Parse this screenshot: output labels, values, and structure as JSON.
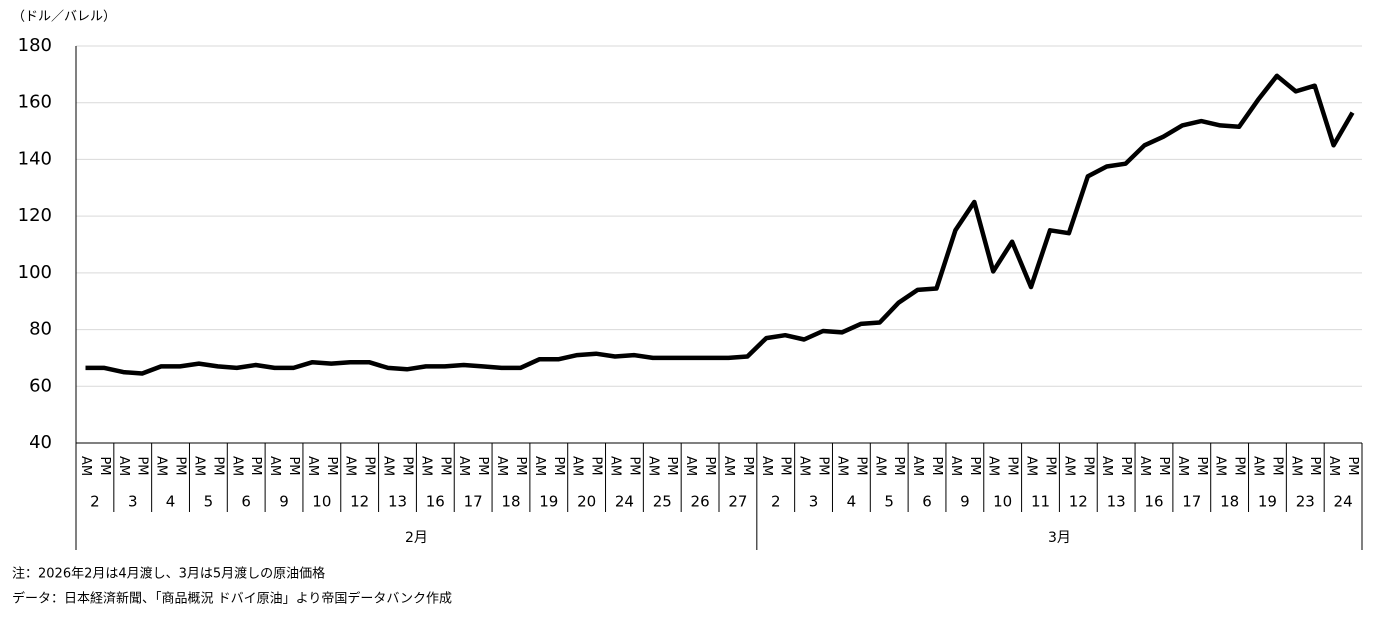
{
  "chart_data": {
    "type": "line",
    "y_label": "（ドル／バレル）",
    "categories": [
      "AM",
      "PM",
      "AM",
      "PM",
      "AM",
      "PM",
      "AM",
      "PM",
      "AM",
      "PM",
      "AM",
      "PM",
      "AM",
      "PM",
      "AM",
      "PM",
      "AM",
      "PM",
      "AM",
      "PM",
      "AM",
      "PM",
      "AM",
      "PM",
      "AM",
      "PM",
      "AM",
      "PM",
      "AM",
      "PM",
      "AM",
      "PM",
      "AM",
      "PM",
      "AM",
      "PM",
      "AM",
      "PM",
      "AM",
      "PM",
      "AM",
      "PM",
      "AM",
      "PM",
      "AM",
      "PM",
      "AM",
      "PM",
      "AM",
      "PM",
      "AM",
      "PM",
      "AM",
      "PM",
      "AM",
      "PM",
      "AM",
      "PM",
      "AM",
      "PM",
      "AM",
      "PM",
      "AM",
      "PM",
      "AM",
      "PM",
      "AM",
      "PM"
    ],
    "groups": [
      {
        "name": "2月",
        "days": [
          "2",
          "3",
          "4",
          "5",
          "6",
          "9",
          "10",
          "12",
          "13",
          "16",
          "17",
          "18",
          "19",
          "20",
          "24",
          "25",
          "26",
          "27"
        ]
      },
      {
        "name": "3月",
        "days": [
          "2",
          "3",
          "4",
          "5",
          "6",
          "9",
          "10",
          "11",
          "12",
          "13",
          "16",
          "17",
          "18",
          "19",
          "23",
          "24"
        ]
      }
    ],
    "values": [
      66.5,
      66.5,
      65,
      64.5,
      67,
      67,
      68,
      67,
      66.5,
      67.5,
      66.5,
      66.5,
      68.5,
      68,
      68.5,
      68.5,
      66.5,
      66,
      67,
      67,
      67.5,
      67,
      66.5,
      66.5,
      69.5,
      69.5,
      71,
      71.5,
      70.5,
      71,
      70,
      70,
      70,
      70,
      70,
      70.5,
      77,
      78,
      76.5,
      79.5,
      79,
      82,
      82.5,
      89.5,
      94,
      94.5,
      115,
      125,
      100.5,
      111,
      95,
      115,
      114,
      134,
      137.5,
      138.5,
      145,
      148,
      152,
      153.5,
      152,
      151.5,
      161,
      169.5,
      164,
      166,
      145,
      156.5
    ],
    "color": "#000000",
    "ylim": [
      40,
      180
    ],
    "yticks": [
      40,
      60,
      80,
      100,
      120,
      140,
      160,
      180
    ],
    "grid": true,
    "notes": [
      "注：2026年2月は4月渡し、3月は5月渡しの原油価格",
      "データ：日本経済新聞、「商品概況 ドバイ原油」より帝国データバンク作成"
    ]
  }
}
